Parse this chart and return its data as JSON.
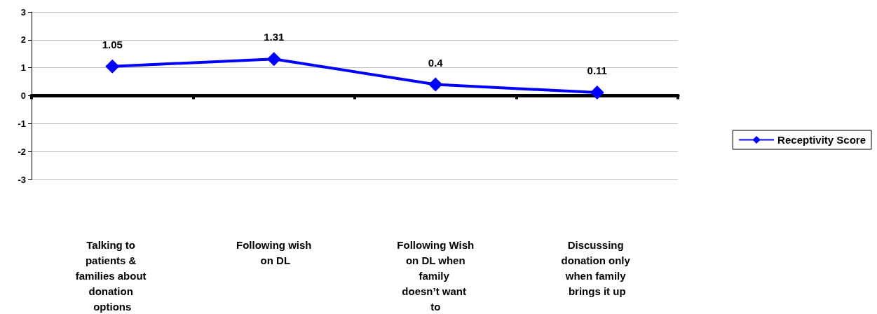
{
  "chart_data": {
    "type": "line",
    "categories": [
      "Talking to patients & families about donation options",
      "Following wish on DL",
      "Following Wish on DL when family doesn’t want to",
      "Discussing donation only when family brings it up"
    ],
    "series": [
      {
        "name": "Receptivity Score",
        "color": "#0000ff",
        "values": [
          1.05,
          1.31,
          0.4,
          0.11
        ]
      }
    ],
    "ylim": [
      -3,
      3
    ],
    "yticks": [
      -3,
      -2,
      -1,
      0,
      1,
      2,
      3
    ],
    "grid": "y",
    "legend": "right",
    "marker": "diamond",
    "line_style": "solid",
    "data_labels": true
  }
}
